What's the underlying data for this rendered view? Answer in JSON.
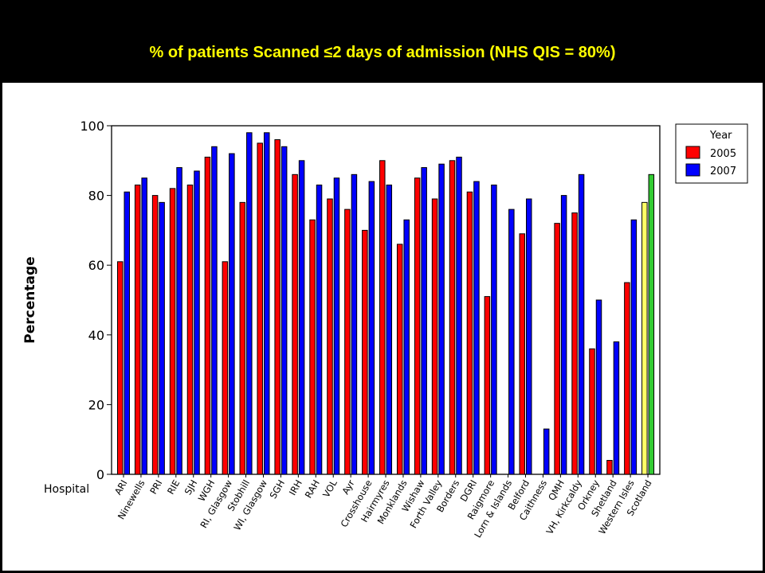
{
  "title": "% of patients Scanned ≤2 days of admission  (NHS QIS = 80%)",
  "chart_data": {
    "type": "bar",
    "title": "% of patients Scanned ≤2 days of admission  (NHS QIS = 80%)",
    "xlabel": "Hospital",
    "ylabel": "Percentage",
    "ylim": [
      0,
      100
    ],
    "yticks": [
      "0",
      "20",
      "40",
      "60",
      "80",
      "100"
    ],
    "grid": false,
    "legend": {
      "title": "Year",
      "placement": "top-right",
      "entries": [
        "2005",
        "2007"
      ]
    },
    "categories": [
      "ARI",
      "Ninewells",
      "PRI",
      "RIE",
      "SJH",
      "WGH",
      "RI, Glasgow",
      "Stobhill",
      "WI, Glasgow",
      "SGH",
      "IRH",
      "RAH",
      "VOL",
      "Ayr",
      "Crosshouse",
      "Hairmyres",
      "Monklands",
      "Wishaw",
      "Forth Valley",
      "Borders",
      "DGRI",
      "Raigmore",
      "Lorn & Islands",
      "Belford",
      "Caithness",
      "QMH",
      "VH, Kirkcaldy",
      "Orkney",
      "Shetland",
      "Western Isles",
      "Scotland"
    ],
    "series": [
      {
        "name": "2005",
        "color": "#ff0000",
        "values": [
          61,
          83,
          80,
          82,
          83,
          91,
          61,
          78,
          95,
          96,
          86,
          73,
          79,
          76,
          70,
          90,
          66,
          85,
          79,
          90,
          81,
          51,
          null,
          69,
          null,
          72,
          75,
          36,
          4,
          55,
          78
        ]
      },
      {
        "name": "2007",
        "color": "#0000ff",
        "values": [
          81,
          85,
          78,
          88,
          87,
          94,
          92,
          98,
          98,
          94,
          90,
          83,
          85,
          86,
          84,
          83,
          73,
          88,
          89,
          91,
          84,
          83,
          76,
          79,
          13,
          80,
          86,
          50,
          38,
          73,
          86
        ]
      }
    ],
    "highlight": {
      "category": "Scotland",
      "colors": [
        "#ffff66",
        "#33cc33"
      ]
    }
  }
}
